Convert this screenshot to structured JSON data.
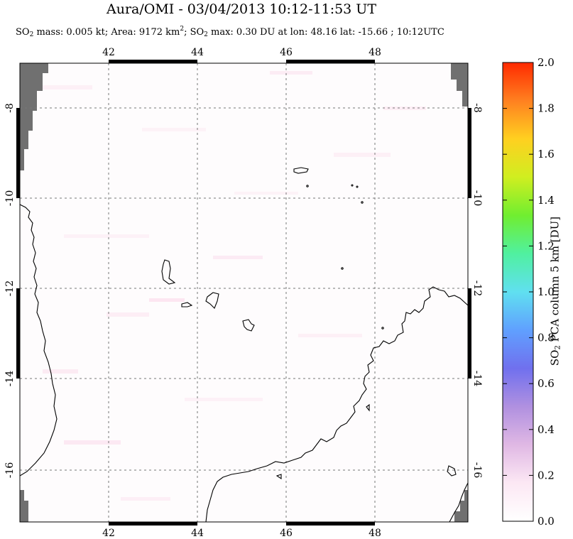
{
  "header": {
    "title": "Aura/OMI - 03/04/2013 10:12-11:53 UT",
    "subtitle_parts": {
      "so2_mass_label_a": "SO",
      "so2_mass_label_sub": "2",
      "so2_mass_label_b": " mass: 0.005 kt; Area: 9172 km",
      "area_sup": "2",
      "so2_max_label_a": "; SO",
      "so2_max_label_sub": "2",
      "so2_max_label_b": " max: 0.30 DU at lon: 48.16 lat: -15.66 ; 10:12UTC"
    }
  },
  "map": {
    "lon_range": [
      40,
      50
    ],
    "lat_range": [
      -17.4,
      -7.4
    ],
    "lon_ticks": [
      "42",
      "44",
      "46",
      "48"
    ],
    "lat_ticks": [
      "-8",
      "-10",
      "-12",
      "-14",
      "-16"
    ],
    "grid": true,
    "grid_style": "dotted",
    "no_data_color": "#707070",
    "coastline_color": "#000000"
  },
  "colorbar": {
    "label_a": "SO",
    "label_sub": "2",
    "label_b": " PCA column 5 km [DU]",
    "ticks": [
      "0.0",
      "0.2",
      "0.4",
      "0.6",
      "0.8",
      "1.0",
      "1.2",
      "1.4",
      "1.6",
      "1.8",
      "2.0"
    ],
    "range": [
      0,
      2
    ],
    "colors": [
      "#ffffff",
      "#fce8f4",
      "#e0b8e4",
      "#b090e0",
      "#7070ee",
      "#60a0ff",
      "#60e0f0",
      "#50f0a0",
      "#70ee30",
      "#d0ee20",
      "#ffd020",
      "#ff8020",
      "#ff2a00"
    ]
  }
}
